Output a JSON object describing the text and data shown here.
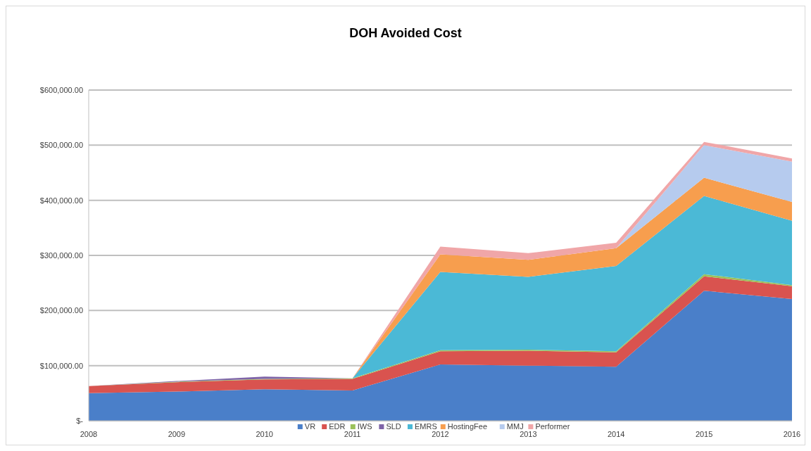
{
  "chart_data": {
    "type": "area",
    "title": "DOH Avoided Cost",
    "stacked": true,
    "x": [
      2008,
      2009,
      2010,
      2011,
      2012,
      2013,
      2014,
      2015,
      2016
    ],
    "xlim": [
      2008,
      2016
    ],
    "xticks": [
      2008,
      2009,
      2010,
      2011,
      2012,
      2013,
      2014,
      2015,
      2016
    ],
    "ylim": [
      0,
      600000
    ],
    "yticks": [
      {
        "value": 0,
        "label": "$-"
      },
      {
        "value": 100000,
        "label": "$100,000.00"
      },
      {
        "value": 200000,
        "label": "$200,000.00"
      },
      {
        "value": 300000,
        "label": "$300,000.00"
      },
      {
        "value": 400000,
        "label": "$400,000.00"
      },
      {
        "value": 500000,
        "label": "$500,000.00"
      },
      {
        "value": 600000,
        "label": "$600,000.00"
      }
    ],
    "grid": "y",
    "legend": "bottom",
    "series": [
      {
        "name": "VR",
        "color": "#4a7fc9",
        "values": [
          50000,
          53000,
          57000,
          55000,
          102000,
          100000,
          98000,
          236000,
          221000
        ]
      },
      {
        "name": "EDR",
        "color": "#d9534f",
        "values": [
          13000,
          17000,
          18000,
          21000,
          24000,
          27000,
          26000,
          26000,
          23000
        ]
      },
      {
        "name": "IWS",
        "color": "#9bc15a",
        "values": [
          0,
          1000,
          1000,
          1000,
          2000,
          2000,
          2000,
          4000,
          2000
        ]
      },
      {
        "name": "SLD",
        "color": "#7f64a8",
        "values": [
          0,
          1000,
          4000,
          0,
          null,
          null,
          null,
          null,
          null
        ]
      },
      {
        "name": "EMRS",
        "color": "#4bb9d6",
        "values": [
          null,
          null,
          null,
          0,
          142000,
          132000,
          155000,
          142000,
          117000
        ]
      },
      {
        "name": "HostingFee",
        "color": "#f79e4e",
        "values": [
          null,
          null,
          null,
          0,
          32000,
          31000,
          32000,
          33000,
          34000
        ]
      },
      {
        "name": "MMJ",
        "color": "#b6cbee",
        "values": [
          null,
          null,
          null,
          null,
          null,
          null,
          0,
          59000,
          73000
        ]
      },
      {
        "name": "Performer",
        "color": "#f0a6a8",
        "values": [
          null,
          null,
          null,
          0,
          14000,
          12000,
          10000,
          6000,
          6000
        ]
      }
    ]
  }
}
